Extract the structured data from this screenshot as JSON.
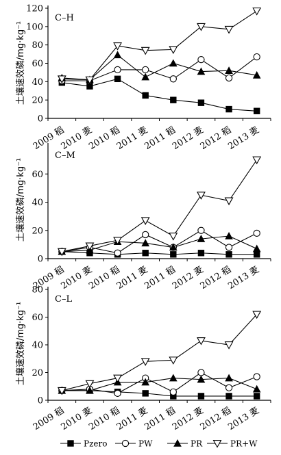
{
  "chart_data": {
    "type": "line",
    "categories": [
      "2009 稻",
      "2010 麦",
      "2010 稻",
      "2011 麦",
      "2011 稻",
      "2012 麦",
      "2012 稻",
      "2013 麦"
    ],
    "ylabel": "土壤速效磷/mg·kg⁻¹",
    "legend": {
      "placement": "bottom",
      "items": [
        {
          "name": "Pzero",
          "marker": "filled-square"
        },
        {
          "name": "PW",
          "marker": "open-circle"
        },
        {
          "name": "PR",
          "marker": "filled-triangle"
        },
        {
          "name": "PR+W",
          "marker": "open-inverted-triangle"
        }
      ]
    },
    "panels": [
      {
        "label": "C–H",
        "ylim": [
          0,
          120
        ],
        "yticks": [
          0,
          20,
          40,
          60,
          80,
          100,
          120
        ],
        "series": [
          {
            "name": "Pzero",
            "values": [
              39,
              35,
              43,
              25,
              20,
              17,
              10,
              8
            ]
          },
          {
            "name": "PW",
            "values": [
              41,
              41,
              53,
              53,
              43,
              64,
              44,
              67
            ]
          },
          {
            "name": "PR",
            "values": [
              44,
              42,
              69,
              45,
              60,
              51,
              52,
              47
            ]
          },
          {
            "name": "PR+W",
            "values": [
              43,
              42,
              79,
              74,
              75,
              100,
              97,
              117
            ]
          }
        ]
      },
      {
        "label": "C–M",
        "ylim": [
          0,
          80
        ],
        "yticks": [
          0,
          20,
          40,
          60
        ],
        "series": [
          {
            "name": "Pzero",
            "values": [
              5,
              4,
              3,
              4,
              3,
              4,
              3,
              3
            ]
          },
          {
            "name": "PW",
            "values": [
              5,
              8,
              4,
              17,
              8,
              20,
              8,
              18
            ]
          },
          {
            "name": "PR",
            "values": [
              5,
              6,
              12,
              11,
              8,
              14,
              16,
              7
            ]
          },
          {
            "name": "PR+W",
            "values": [
              5,
              9,
              13,
              27,
              16,
              45,
              41,
              70
            ]
          }
        ]
      },
      {
        "label": "C–L",
        "ylim": [
          0,
          80
        ],
        "yticks": [
          0,
          20,
          40,
          60,
          80
        ],
        "series": [
          {
            "name": "Pzero",
            "values": [
              7,
              7,
              6,
              5,
              3,
              3,
              3,
              3
            ]
          },
          {
            "name": "PW",
            "values": [
              7,
              8,
              5,
              16,
              6,
              20,
              9,
              17
            ]
          },
          {
            "name": "PR",
            "values": [
              7,
              7,
              13,
              13,
              16,
              15,
              16,
              8
            ]
          },
          {
            "name": "PR+W",
            "values": [
              7,
              12,
              16,
              28,
              29,
              43,
              40,
              62
            ]
          }
        ]
      }
    ]
  }
}
